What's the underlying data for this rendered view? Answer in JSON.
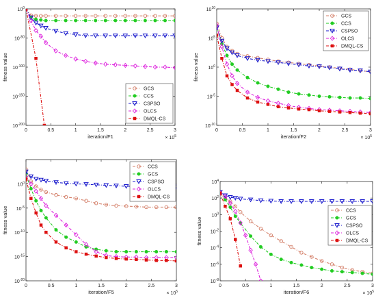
{
  "chart_data": [
    {
      "type": "line",
      "ylog": true,
      "xlabel": "iteration/F1",
      "ylabel": "fitness value",
      "x_exponent": "5",
      "xlim": [
        0,
        3
      ],
      "ylim_exp": [
        -200,
        0
      ],
      "x_ticks": [
        "0",
        "0.5",
        "1",
        "1.5",
        "2",
        "2.5",
        "3"
      ],
      "y_ticks": [
        {
          "exp": 0,
          "label": "10^0"
        },
        {
          "exp": -50,
          "label": "10^-50"
        },
        {
          "exp": -100,
          "label": "10^-100"
        },
        {
          "exp": -150,
          "label": "10^-150"
        },
        {
          "exp": -200,
          "label": "10^-200"
        }
      ],
      "legend_position": "right-middle",
      "series": [
        {
          "name": "GCS",
          "color": "#d4806a",
          "marker": "circle-open",
          "dash": "4,2,1,2",
          "x": [
            0,
            0.1,
            0.2,
            0.3,
            0.4,
            0.6,
            0.8,
            1.0,
            1.2,
            1.4,
            1.6,
            1.8,
            2.0,
            2.2,
            2.4,
            2.6,
            2.8,
            3.0
          ],
          "y": [
            0,
            -11,
            -12,
            -12,
            -12,
            -12,
            -12,
            -12,
            -12,
            -12,
            -12,
            -12,
            -12,
            -12,
            -12,
            -12,
            -12,
            -12
          ]
        },
        {
          "name": "CCS",
          "color": "#22cc22",
          "marker": "circle-filled",
          "dash": "4,2,1,2",
          "x": [
            0,
            0.1,
            0.2,
            0.3,
            0.4,
            0.6,
            0.8,
            1.0,
            1.2,
            1.4,
            1.6,
            1.8,
            2.0,
            2.2,
            2.4,
            2.6,
            2.8,
            3.0
          ],
          "y": [
            0,
            -15,
            -18,
            -19,
            -20,
            -20,
            -20,
            -20,
            -20,
            -20,
            -20,
            -20,
            -20,
            -20,
            -20,
            -20,
            -20,
            -20
          ]
        },
        {
          "name": "CSPSO",
          "color": "#1a1acc",
          "marker": "triangle-down",
          "dash": "4,2,1,2",
          "x": [
            0,
            0.1,
            0.2,
            0.3,
            0.4,
            0.6,
            0.8,
            1.0,
            1.2,
            1.4,
            1.6,
            1.8,
            2.0,
            2.2,
            2.4,
            2.6,
            2.8,
            3.0
          ],
          "y": [
            0,
            -15,
            -24,
            -29,
            -33,
            -38,
            -42,
            -44,
            -46,
            -46,
            -46,
            -46,
            -46,
            -46,
            -46,
            -46,
            -46,
            -46
          ]
        },
        {
          "name": "OLCS",
          "color": "#dd22dd",
          "marker": "diamond-open",
          "dash": "4,2,1,2",
          "x": [
            0,
            0.1,
            0.2,
            0.3,
            0.4,
            0.6,
            0.8,
            1.0,
            1.2,
            1.4,
            1.6,
            1.8,
            2.0,
            2.2,
            2.4,
            2.6,
            2.8,
            3.0
          ],
          "y": [
            0,
            -20,
            -37,
            -47,
            -58,
            -72,
            -80,
            -86,
            -90,
            -93,
            -95,
            -96,
            -97,
            -98,
            -99,
            -100,
            -100,
            -101
          ]
        },
        {
          "name": "DMQL-CS",
          "color": "#dd1111",
          "marker": "square-filled",
          "dash": "4,2,1,2",
          "x": [
            0,
            0.2,
            0.37
          ],
          "y": [
            0,
            -85,
            -200
          ]
        }
      ]
    },
    {
      "type": "line",
      "ylog": true,
      "xlabel": "iteration/F2",
      "ylabel": "fitness value",
      "x_exponent": "5",
      "xlim": [
        0,
        3
      ],
      "ylim_exp": [
        -10,
        10
      ],
      "x_ticks": [
        "0",
        "0.5",
        "1",
        "1.5",
        "2",
        "2.5",
        "3"
      ],
      "y_ticks": [
        {
          "exp": 10,
          "label": "10^10"
        },
        {
          "exp": 5,
          "label": "10^5"
        },
        {
          "exp": 0,
          "label": "10^0"
        },
        {
          "exp": -5,
          "label": "10^-5"
        },
        {
          "exp": -10,
          "label": "10^-10"
        }
      ],
      "legend_position": "top-right",
      "series": [
        {
          "name": "GCS",
          "color": "#d4806a",
          "marker": "circle-open",
          "dash": "4,2,1,2",
          "x": [
            0,
            0.1,
            0.2,
            0.3,
            0.4,
            0.6,
            0.8,
            1.0,
            1.2,
            1.4,
            1.6,
            1.8,
            2.0,
            2.2,
            2.4,
            2.6,
            2.8,
            3.0
          ],
          "y": [
            7.5,
            5,
            3.5,
            2.8,
            2.3,
            1.9,
            1.6,
            1.3,
            1.0,
            0.8,
            0.6,
            0.4,
            0.2,
            0.0,
            -0.2,
            -0.4,
            -0.6,
            -0.8
          ]
        },
        {
          "name": "CCS",
          "color": "#22cc22",
          "marker": "circle-filled",
          "dash": "4,2,1,2",
          "x": [
            0,
            0.1,
            0.2,
            0.3,
            0.4,
            0.6,
            0.8,
            1.0,
            1.2,
            1.4,
            1.6,
            1.8,
            2.0,
            2.2,
            2.4,
            2.6,
            2.8,
            3.0
          ],
          "y": [
            7.0,
            4,
            2,
            0.5,
            -0.5,
            -1.8,
            -2.7,
            -3.3,
            -3.8,
            -4.3,
            -4.6,
            -4.8,
            -5.0,
            -5.1,
            -5.2,
            -5.3,
            -5.3,
            -5.4
          ]
        },
        {
          "name": "CSPSO",
          "color": "#1a1acc",
          "marker": "triangle-down",
          "dash": "4,2,1,2",
          "x": [
            0,
            0.1,
            0.2,
            0.3,
            0.4,
            0.6,
            0.8,
            1.0,
            1.2,
            1.4,
            1.6,
            1.8,
            2.0,
            2.2,
            2.4,
            2.6,
            2.8,
            3.0
          ],
          "y": [
            6.8,
            4.5,
            3.2,
            2.5,
            2.0,
            1.5,
            1.2,
            1.0,
            0.8,
            0.6,
            0.4,
            0.2,
            0.1,
            -0.1,
            -0.3,
            -0.5,
            -0.6,
            -0.8
          ]
        },
        {
          "name": "OLCS",
          "color": "#dd22dd",
          "marker": "diamond-open",
          "dash": "4,2,1,2",
          "x": [
            0,
            0.1,
            0.2,
            0.3,
            0.4,
            0.6,
            0.8,
            1.0,
            1.2,
            1.4,
            1.6,
            1.8,
            2.0,
            2.2,
            2.4,
            2.6,
            2.8,
            3.0
          ],
          "y": [
            7.2,
            3.5,
            0.5,
            -1.5,
            -2.8,
            -4.3,
            -5.2,
            -5.8,
            -6.2,
            -6.6,
            -6.9,
            -7.1,
            -7.3,
            -7.4,
            -7.5,
            -7.6,
            -7.7,
            -7.8
          ]
        },
        {
          "name": "DMQL-CS",
          "color": "#dd1111",
          "marker": "square-filled",
          "dash": "4,2,1,2",
          "x": [
            0,
            0.1,
            0.2,
            0.3,
            0.4,
            0.6,
            0.8,
            1.0,
            1.2,
            1.4,
            1.6,
            1.8,
            2.0,
            2.2,
            2.4,
            2.6,
            2.8,
            3.0
          ],
          "y": [
            5.5,
            1.5,
            -1.5,
            -3.0,
            -4.0,
            -5.3,
            -6.0,
            -6.4,
            -6.8,
            -7.0,
            -7.2,
            -7.3,
            -7.5,
            -7.6,
            -7.7,
            -7.8,
            -7.9,
            -8.0
          ]
        }
      ]
    },
    {
      "type": "line",
      "ylog": true,
      "xlabel": "iteration/F5",
      "ylabel": "fitness value",
      "x_exponent": "5",
      "xlim": [
        0,
        3
      ],
      "ylim_exp": [
        -20,
        5
      ],
      "x_ticks": [
        "0",
        "0.5",
        "1",
        "1.5",
        "2",
        "2.5",
        "3"
      ],
      "y_ticks": [
        {
          "exp": 0,
          "label": "10^0"
        },
        {
          "exp": -5,
          "label": "10^-5"
        },
        {
          "exp": -10,
          "label": "10^-10"
        },
        {
          "exp": -15,
          "label": "10^-15"
        },
        {
          "exp": -20,
          "label": "10^-20"
        }
      ],
      "legend_position": "top-right",
      "series": [
        {
          "name": "CCS",
          "color": "#d4806a",
          "marker": "circle-open",
          "dash": "4,2,1,2",
          "x": [
            0,
            0.1,
            0.2,
            0.3,
            0.4,
            0.6,
            0.8,
            1.0,
            1.2,
            1.4,
            1.6,
            1.8,
            2.0,
            2.2,
            2.4,
            2.6,
            2.8,
            3.0
          ],
          "y": [
            3,
            0.5,
            -0.5,
            -1.2,
            -1.7,
            -2.3,
            -2.7,
            -3.0,
            -3.5,
            -4.0,
            -4.3,
            -4.5,
            -4.6,
            -4.7,
            -4.8,
            -4.8,
            -4.8,
            -4.8
          ]
        },
        {
          "name": "GCS",
          "color": "#22cc22",
          "marker": "circle-filled",
          "dash": "4,2,1,2",
          "x": [
            0,
            0.1,
            0.2,
            0.3,
            0.4,
            0.6,
            0.8,
            1.0,
            1.2,
            1.4,
            1.6,
            1.8,
            2.0,
            2.2,
            2.4,
            2.6,
            2.8,
            3.0
          ],
          "y": [
            2,
            -1,
            -3.5,
            -5.5,
            -7,
            -9.5,
            -11,
            -12,
            -13,
            -13.5,
            -13.8,
            -14,
            -14,
            -14,
            -14,
            -14,
            -14,
            -14
          ]
        },
        {
          "name": "CSPSO",
          "color": "#1a1acc",
          "marker": "triangle-down",
          "dash": "4,2,1,2",
          "x": [
            0,
            0.1,
            0.2,
            0.3,
            0.4,
            0.6,
            0.8,
            1.0,
            1.2,
            1.4,
            1.6,
            1.8,
            2.0,
            2.2,
            2.4,
            2.6,
            2.8,
            3.0
          ],
          "y": [
            2.5,
            1.5,
            1.0,
            0.8,
            0.6,
            0.3,
            0.1,
            0.0,
            -0.1,
            -0.2,
            -0.3,
            -0.4,
            -0.5,
            -0.5,
            -0.6,
            -0.6,
            -0.6,
            -0.6
          ]
        },
        {
          "name": "OLCS",
          "color": "#dd22dd",
          "marker": "diamond-open",
          "dash": "4,2,1,2",
          "x": [
            0,
            0.1,
            0.2,
            0.3,
            0.4,
            0.6,
            0.8,
            1.0,
            1.2,
            1.4,
            1.6,
            1.8,
            2.0,
            2.2,
            2.4,
            2.6,
            2.8,
            3.0
          ],
          "y": [
            1.5,
            0,
            -1.5,
            -3,
            -4.5,
            -6.5,
            -8.5,
            -10.5,
            -12.5,
            -14.0,
            -14.8,
            -15.0,
            -15.1,
            -15.1,
            -15.2,
            -15.2,
            -15.2,
            -15.2
          ]
        },
        {
          "name": "DMQL-CS",
          "color": "#dd1111",
          "marker": "square-filled",
          "dash": "4,2,1,2",
          "x": [
            0,
            0.1,
            0.2,
            0.3,
            0.4,
            0.6,
            0.8,
            1.0,
            1.2,
            1.4,
            1.6,
            1.8,
            2.0,
            2.2,
            2.4,
            2.6,
            2.8,
            3.0
          ],
          "y": [
            1,
            -3,
            -6,
            -8.5,
            -10,
            -12,
            -13.2,
            -14,
            -14.5,
            -14.9,
            -15.2,
            -15.4,
            -15.5,
            -15.6,
            -15.7,
            -15.8,
            -15.8,
            -15.9
          ]
        }
      ]
    },
    {
      "type": "line",
      "ylog": true,
      "xlabel": "iteration/F6",
      "ylabel": "fitness value",
      "x_exponent": "5",
      "xlim": [
        0,
        3
      ],
      "ylim_exp": [
        -8,
        4
      ],
      "x_ticks": [
        "0",
        "0.5",
        "1",
        "1.5",
        "2",
        "2.5",
        "3"
      ],
      "y_ticks": [
        {
          "exp": 4,
          "label": "10^4"
        },
        {
          "exp": 2,
          "label": "10^2"
        },
        {
          "exp": 0,
          "label": "10^0"
        },
        {
          "exp": -2,
          "label": "10^-2"
        },
        {
          "exp": -4,
          "label": "10^-4"
        },
        {
          "exp": -6,
          "label": "10^-6"
        },
        {
          "exp": -8,
          "label": "10^-8"
        }
      ],
      "legend_position": "right-middle",
      "series": [
        {
          "name": "CCS",
          "color": "#d4806a",
          "marker": "circle-open",
          "dash": "4,2,1,2",
          "x": [
            0,
            0.1,
            0.2,
            0.3,
            0.4,
            0.6,
            0.8,
            1.0,
            1.2,
            1.4,
            1.6,
            1.8,
            2.0,
            2.2,
            2.4,
            2.6,
            2.8,
            3.0
          ],
          "y": [
            2.7,
            2.0,
            1.6,
            1.0,
            0.3,
            -0.8,
            -1.7,
            -2.5,
            -3.2,
            -3.9,
            -4.6,
            -5.1,
            -5.6,
            -6.0,
            -6.4,
            -6.7,
            -6.9,
            -7.1
          ]
        },
        {
          "name": "GCS",
          "color": "#22cc22",
          "marker": "circle-filled",
          "dash": "4,2,1,2",
          "x": [
            0,
            0.1,
            0.2,
            0.3,
            0.4,
            0.6,
            0.8,
            1.0,
            1.2,
            1.4,
            1.6,
            1.8,
            2.0,
            2.2,
            2.4,
            2.6,
            2.8,
            3.0
          ],
          "y": [
            2.6,
            1.8,
            0.9,
            -0.2,
            -1.0,
            -2.6,
            -3.9,
            -4.8,
            -5.4,
            -5.8,
            -6.1,
            -6.4,
            -6.6,
            -6.8,
            -6.9,
            -7.0,
            -7.1,
            -7.2
          ]
        },
        {
          "name": "CSPSO",
          "color": "#1a1acc",
          "marker": "triangle-down",
          "dash": "4,2,1,2",
          "x": [
            0,
            0.1,
            0.2,
            0.3,
            0.4,
            0.6,
            0.8,
            1.0,
            1.2,
            1.4,
            1.6,
            1.8,
            2.0,
            2.2,
            2.4,
            2.6,
            2.8,
            3.0
          ],
          "y": [
            2.7,
            2.3,
            2.1,
            2.0,
            1.9,
            1.8,
            1.7,
            1.65,
            1.6,
            1.6,
            1.6,
            1.6,
            1.6,
            1.6,
            1.6,
            1.6,
            1.6,
            1.6
          ]
        },
        {
          "name": "OLCS",
          "color": "#dd22dd",
          "marker": "diamond-open",
          "dash": "4,2,1,2",
          "x": [
            0,
            0.1,
            0.2,
            0.3,
            0.4,
            0.5,
            0.6,
            0.7,
            0.8
          ],
          "y": [
            2.6,
            2.2,
            1.4,
            0.4,
            -1.0,
            -2.5,
            -4.3,
            -6.0,
            -8.0
          ]
        },
        {
          "name": "DMQL-CS",
          "color": "#dd1111",
          "marker": "square-filled",
          "dash": "4,2,1,2",
          "x": [
            0,
            0.1,
            0.2,
            0.3,
            0.4
          ],
          "y": [
            2.6,
            1.0,
            -0.5,
            -3.0,
            -6.2
          ]
        }
      ]
    }
  ]
}
